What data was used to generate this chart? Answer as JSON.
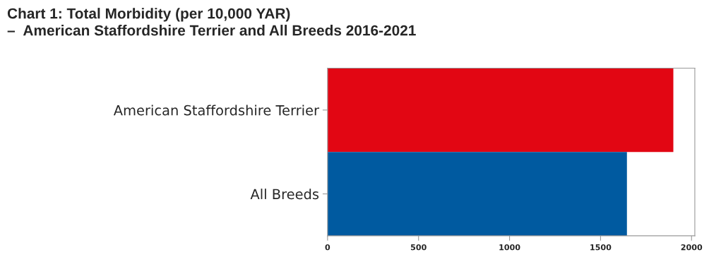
{
  "chart_data": {
    "type": "bar",
    "orientation": "horizontal",
    "title": "Chart 1: Total Morbidity (per 10,000 YAR)\n–  American Staffordshire Terrier and All Breeds 2016-2021",
    "categories": [
      "American Staffordshire Terrier",
      "All Breeds"
    ],
    "values": [
      1900,
      1645
    ],
    "colors": [
      "#e20613",
      "#005aa0"
    ],
    "xlim": [
      0,
      2018
    ],
    "xticks": [
      0,
      500,
      1000,
      1500,
      2000
    ],
    "grid": false,
    "legend": false
  }
}
